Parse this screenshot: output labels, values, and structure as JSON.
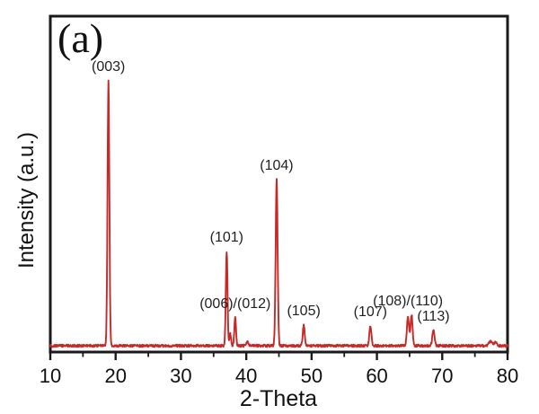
{
  "figure": {
    "panel_label": "(a)"
  },
  "colors": {
    "curve": "#c62a28",
    "axis": "#1a1a1a",
    "text": "#1a1a1a",
    "background": "#ffffff"
  },
  "chart_data": {
    "type": "line",
    "kind": "xrd-pattern",
    "title": "",
    "xlabel": "2-Theta",
    "ylabel": "Intensity (a.u.)",
    "xlim": [
      10,
      80
    ],
    "x_major_ticks": [
      10,
      20,
      30,
      40,
      50,
      60,
      70,
      80
    ],
    "x_minor_ticks": [
      15,
      25,
      35,
      45,
      55,
      65,
      75
    ],
    "y_ticks": "none (arbitrary units)",
    "grid": "off",
    "legend": "none",
    "baseline_level": 0.0,
    "noise_amplitude": 0.004,
    "peaks": [
      {
        "two_theta": 18.9,
        "rel_intensity": 1.0,
        "sigma": 0.14,
        "label": "(003)"
      },
      {
        "two_theta": 37.0,
        "rel_intensity": 0.356,
        "sigma": 0.13,
        "label": "(101)"
      },
      {
        "two_theta": 37.55,
        "rel_intensity": 0.046,
        "sigma": 0.12,
        "label": ""
      },
      {
        "two_theta": 38.3,
        "rel_intensity": 0.105,
        "sigma": 0.13,
        "label": "(006)/(012)"
      },
      {
        "two_theta": 40.2,
        "rel_intensity": 0.016,
        "sigma": 0.14,
        "label": ""
      },
      {
        "two_theta": 44.65,
        "rel_intensity": 0.627,
        "sigma": 0.15,
        "label": "(104)"
      },
      {
        "two_theta": 48.8,
        "rel_intensity": 0.078,
        "sigma": 0.15,
        "label": "(105)"
      },
      {
        "two_theta": 59.0,
        "rel_intensity": 0.075,
        "sigma": 0.15,
        "label": "(107)"
      },
      {
        "two_theta": 64.75,
        "rel_intensity": 0.108,
        "sigma": 0.16,
        "label": "(108)/(110)"
      },
      {
        "two_theta": 65.3,
        "rel_intensity": 0.116,
        "sigma": 0.16,
        "label": ""
      },
      {
        "two_theta": 68.65,
        "rel_intensity": 0.058,
        "sigma": 0.17,
        "label": "(113)"
      },
      {
        "two_theta": 77.4,
        "rel_intensity": 0.016,
        "sigma": 0.25,
        "label": ""
      },
      {
        "two_theta": 78.15,
        "rel_intensity": 0.013,
        "sigma": 0.22,
        "label": ""
      }
    ]
  }
}
